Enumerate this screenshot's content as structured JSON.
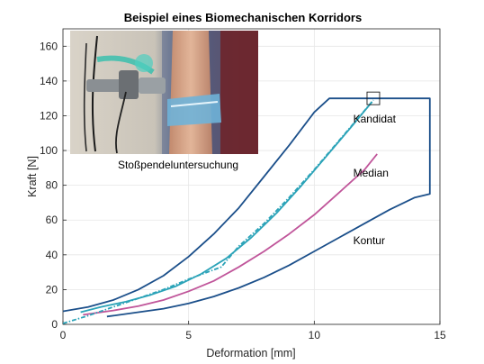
{
  "chart_data": {
    "type": "line",
    "title": "Beispiel eines Biomechanischen Korridors",
    "xlabel": "Deformation [mm]",
    "ylabel": "Kraft [N]",
    "xlim": [
      0,
      15
    ],
    "ylim": [
      0,
      170
    ],
    "xticks": [
      0,
      5,
      10,
      15
    ],
    "yticks": [
      0,
      20,
      40,
      60,
      80,
      100,
      120,
      140,
      160
    ],
    "grid": true,
    "inset_caption": "Stoßpendeluntersuchung",
    "annotations": [
      {
        "text": "Kandidat",
        "x": 11.55,
        "y": 116
      },
      {
        "text": "Median",
        "x": 11.55,
        "y": 85
      },
      {
        "text": "Kontur",
        "x": 11.55,
        "y": 46
      }
    ],
    "series": [
      {
        "id": "corridor",
        "color": "#1b4f8a",
        "style": "solid",
        "points": [
          [
            0,
            7.5
          ],
          [
            1,
            10
          ],
          [
            2,
            14
          ],
          [
            3,
            20
          ],
          [
            4,
            28
          ],
          [
            5,
            39
          ],
          [
            6,
            52
          ],
          [
            7,
            67
          ],
          [
            8,
            85
          ],
          [
            9,
            103
          ],
          [
            10,
            122
          ],
          [
            10.6,
            130
          ],
          [
            14.6,
            130
          ],
          [
            14.6,
            75
          ],
          [
            14,
            73
          ],
          [
            13,
            66
          ],
          [
            12,
            58
          ],
          [
            11,
            50
          ],
          [
            10,
            42
          ],
          [
            9,
            34
          ],
          [
            8,
            27
          ],
          [
            7,
            21
          ],
          [
            6,
            16
          ],
          [
            5,
            12
          ],
          [
            4,
            9
          ],
          [
            3,
            7
          ],
          [
            2,
            5
          ],
          [
            1.75,
            4.5
          ]
        ]
      },
      {
        "id": "median",
        "color": "#c0559a",
        "style": "solid",
        "points": [
          [
            0.8,
            5.5
          ],
          [
            2,
            8
          ],
          [
            3,
            10.5
          ],
          [
            4,
            14
          ],
          [
            5,
            19
          ],
          [
            6,
            25
          ],
          [
            7,
            33
          ],
          [
            8,
            42
          ],
          [
            9,
            52
          ],
          [
            10,
            63
          ],
          [
            11,
            76
          ],
          [
            12,
            89
          ],
          [
            12.5,
            98
          ]
        ]
      },
      {
        "id": "kandidat",
        "color": "#2ba3b8",
        "style": "solid",
        "points": [
          [
            0.7,
            7
          ],
          [
            1.5,
            10
          ],
          [
            2.5,
            13
          ],
          [
            3.5,
            17
          ],
          [
            4.5,
            22
          ],
          [
            5.5,
            29
          ],
          [
            6.5,
            38
          ],
          [
            7.5,
            50
          ],
          [
            8.5,
            64
          ],
          [
            9.5,
            80
          ],
          [
            10.5,
            97
          ],
          [
            11.5,
            114
          ],
          [
            12.3,
            128
          ]
        ]
      },
      {
        "id": "kandidat-dashed",
        "color": "#2ba3b8",
        "style": "dashdot",
        "points": [
          [
            0,
            0.5
          ],
          [
            1,
            5
          ],
          [
            2,
            10
          ],
          [
            3,
            15
          ],
          [
            4,
            20
          ],
          [
            5,
            26
          ],
          [
            6.3,
            33
          ],
          [
            7,
            45
          ],
          [
            8,
            58
          ],
          [
            9,
            73
          ],
          [
            10,
            89
          ],
          [
            11,
            106
          ],
          [
            12,
            123
          ],
          [
            12.35,
            129
          ]
        ]
      }
    ],
    "marker_box": {
      "x": 12.35,
      "y": 130
    }
  }
}
